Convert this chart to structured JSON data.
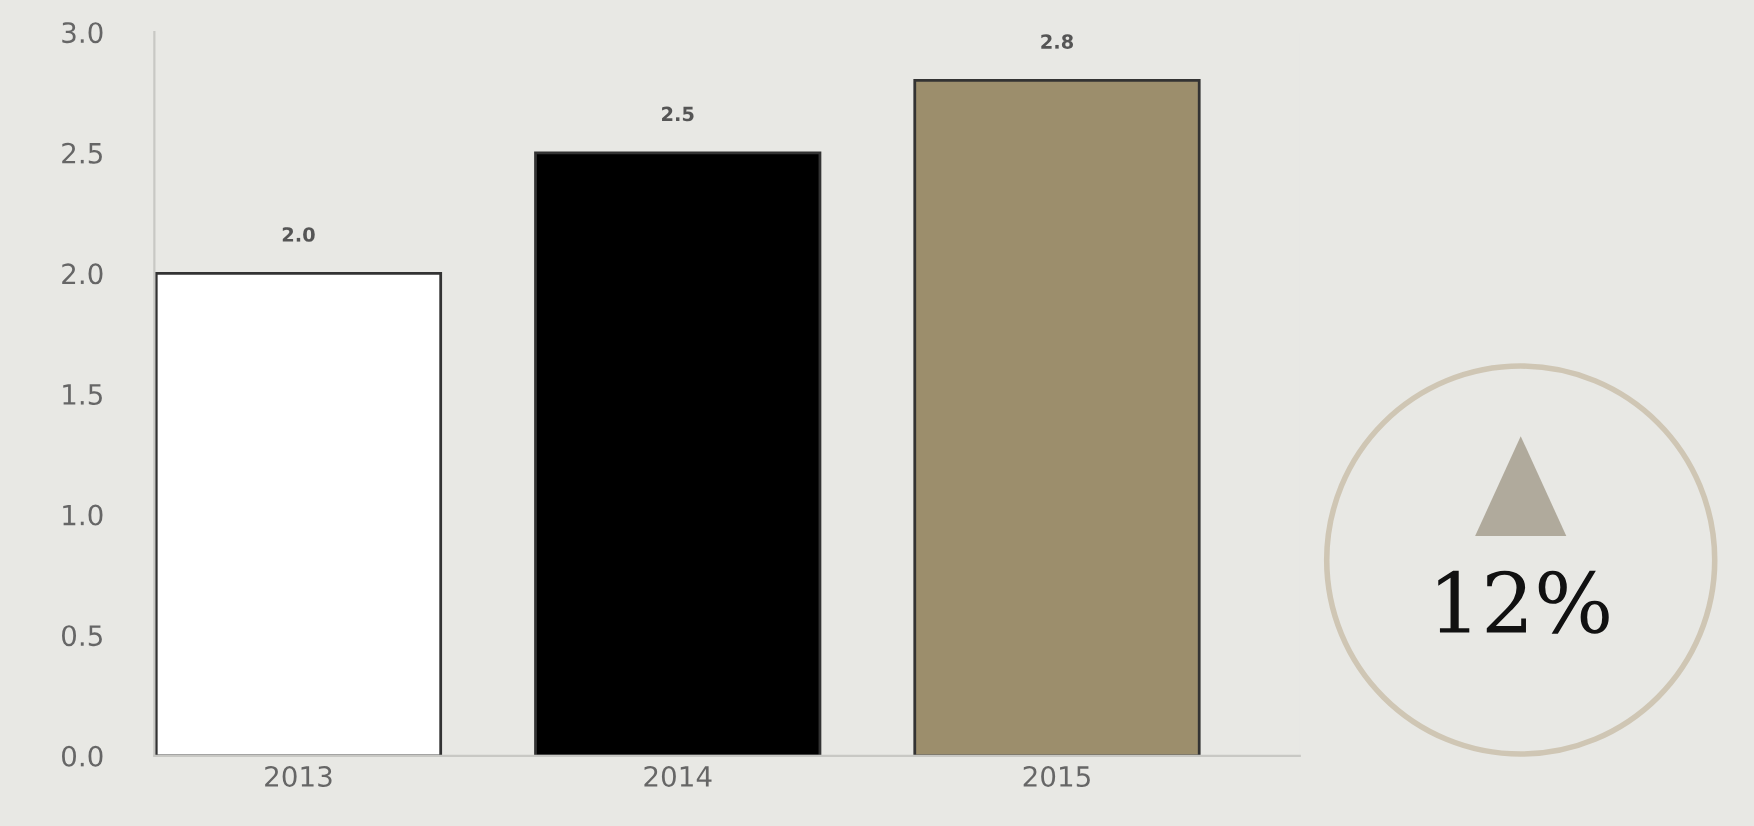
{
  "chart_data": {
    "type": "bar",
    "categories": [
      "2013",
      "2014",
      "2015"
    ],
    "values": [
      2.0,
      2.5,
      2.8
    ],
    "colors": [
      "#ffffff",
      "#000000",
      "#9c8e6c"
    ],
    "ylim": [
      0,
      3
    ],
    "yticks": [
      {
        "value": 0,
        "label": "0.0"
      },
      {
        "value": 0.5,
        "label": "0.5"
      },
      {
        "value": 1,
        "label": "1.0"
      },
      {
        "value": 1.5,
        "label": "1.5"
      },
      {
        "value": 2,
        "label": "2.0"
      },
      {
        "value": 2.5,
        "label": "2.5"
      },
      {
        "value": 3,
        "label": "3.0"
      }
    ],
    "value_labels": [
      "2.0",
      "2.5",
      "2.8"
    ],
    "grid": false,
    "legend": false,
    "annotations": [
      "12%"
    ]
  }
}
